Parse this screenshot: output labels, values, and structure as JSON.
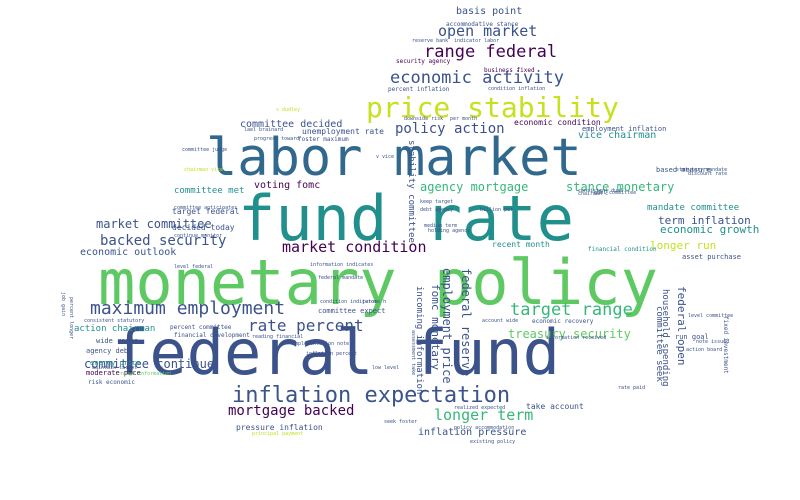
{
  "wordcloud": {
    "palette": {
      "purple": "#440154",
      "indigo": "#3b528b",
      "blue": "#31688e",
      "teal": "#21908d",
      "green": "#35b779",
      "lime": "#5ec962",
      "yellow": "#c7e020"
    },
    "words": {
      "monetary_policy": "monetary policy",
      "federal_fund": "federal fund",
      "fund_rate": "fund rate",
      "labor_market": "labor market",
      "price_stability": "price stability",
      "inflation_expectation": "inflation expectation",
      "maximum_employment": "maximum employment",
      "economic_activity": "economic activity",
      "range_federal": "range federal",
      "open_market": "open market",
      "basis_point": "basis point",
      "policy_action": "policy action",
      "market_condition": "market condition",
      "backed_security": "backed security",
      "market_committee": "market committee",
      "target_range": "target range",
      "rate_percent": "rate percent",
      "committee_continue": "committee continue",
      "mortgage_backed": "mortgage backed",
      "longer_term": "longer term",
      "agency_mortgage": "agency mortgage",
      "stance_monetary": "stance monetary",
      "committee_decided": "committee decided",
      "economic_outlook": "economic outlook",
      "longer_run": "longer run",
      "economic_growth": "economic growth",
      "term_inflation": "term inflation",
      "mandate_committee": "mandate committee",
      "voting_fomc": "voting fomc",
      "treasury_security": "treasury security",
      "committee_met": "committee met",
      "target_federal": "target federal",
      "decided_today": "decided today",
      "unemployment_rate": "unemployment rate",
      "vice_chairman": "vice chairman",
      "economic_condition": "economic condition",
      "employment_inflation": "employment inflation",
      "inflation_pressure": "inflation pressure",
      "pressure_inflation": "pressure inflation",
      "committee_expect": "committee expect",
      "recent_month": "recent month",
      "take_account": "take account",
      "action_chairman": "action chairman",
      "percent_committee": "percent committee",
      "wide_range": "wide range",
      "agency_debt": "agency debt",
      "energy_price": "energy price",
      "moderate_pace": "moderate pace",
      "risk_economic": "risk economic",
      "household_spending": "household spending",
      "federal_open": "federal open",
      "committee_seek": "committee seek",
      "run_goal": "run goal",
      "asset_purchase": "asset purchase",
      "based_measure": "based measure",
      "financial_condition": "financial condition",
      "economic_recovery": "economic recovery",
      "federal_reserve": "federal reserve",
      "employment_price": "employment price",
      "fomc_monetary": "fomc monetary",
      "incoming_information": "incoming information",
      "stability_committee": "stability committee",
      "accommodative_stance": "accommodative stance",
      "reserve_bank": "reserve bank",
      "indicator_labor": "indicator labor",
      "security_agency": "security agency",
      "business_fixed": "business fixed",
      "percent_inflation": "percent inflation",
      "condition_inflation": "condition inflation",
      "downside_risk": "downside risk",
      "per_month": "per month",
      "foster_maximum": "foster maximum",
      "progress_toward": "progress toward",
      "chairman_vice": "chairman vice",
      "committee_judge": "committee judge",
      "statutory_mandate": "statutory mandate",
      "discount_rate": "discount rate",
      "debt_agency": "debt agency",
      "medium_term": "medium term",
      "consistent_statutory": "consistent statutory",
      "maintain_target": "maintain target",
      "range_information": "range information",
      "action_board": "action board",
      "fixed_investment": "fixed investment",
      "level_federal": "level federal",
      "existing_policy": "existing policy",
      "consistent_dual": "consistent dual",
      "goal_committee": "goal committee",
      "continue_monitor": "continue monitor",
      "level_committee": "level committee",
      "lael_brainard": "lael brainard",
      "committee_anticipates": "committee anticipates",
      "s_dudley": "s dudley",
      "billion_per": "billion per",
      "keep_target": "keep target",
      "condition_indicator": "condition indicator",
      "jerome_h": "jerome h",
      "assessment_take": "assessment take",
      "account_wide": "account wide",
      "information_received": "information received",
      "implementation_note": "implementation note",
      "inflation_percent": "inflation percent",
      "seek_foster": "seek foster",
      "realized_expected": "realized expected",
      "principal_payment": "principal payment",
      "job_gain": "job gain",
      "percent_longer": "percent longer",
      "low_level": "low level",
      "note_issued": "note issued",
      "rate_paid": "rate paid",
      "chairman_c": "chairman c",
      "information_indicates": "information indicates",
      "policy_accommodation": "policy accommodation",
      "financial_development": "financial development",
      "reading_financial": "reading financial",
      "federal_mandate": "federal mandate",
      "v_vice": "v vice",
      "holding_agency": "holding agency"
    }
  }
}
